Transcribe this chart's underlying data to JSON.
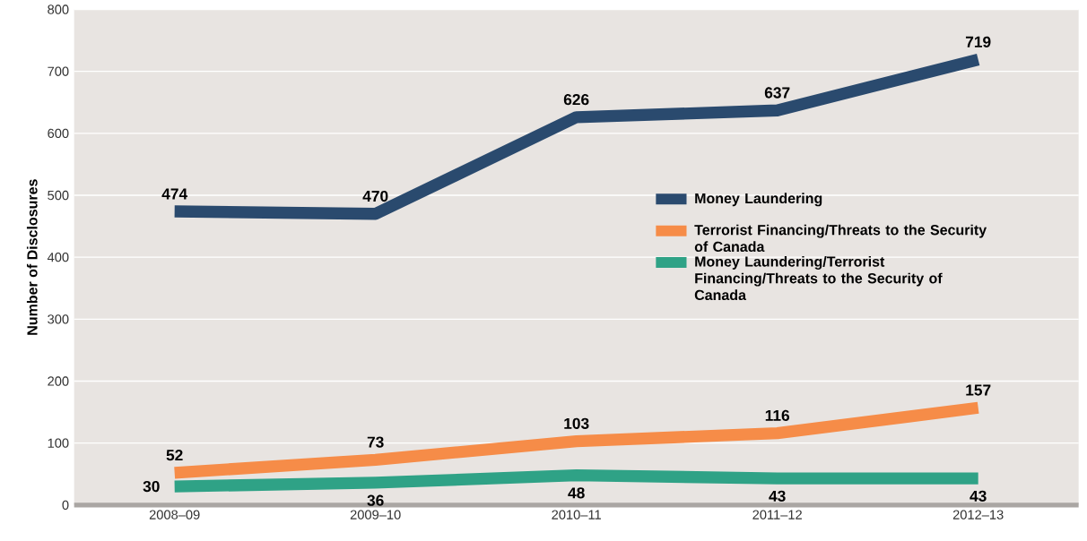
{
  "chart_data": {
    "type": "line",
    "ylabel": "Number of Disclosures",
    "categories": [
      "2008–09",
      "2009–10",
      "2010–11",
      "2011–12",
      "2012–13"
    ],
    "series": [
      {
        "name": "Money Laundering",
        "color": "#2a4a6e",
        "values": [
          474,
          470,
          626,
          637,
          719
        ]
      },
      {
        "name": "Terrorist Financing/Threats to the Security of Canada",
        "color": "#f68c48",
        "values": [
          52,
          73,
          103,
          116,
          157
        ]
      },
      {
        "name": "Money Laundering/Terrorist Financing/Threats to the Security of Canada",
        "color": "#2fa286",
        "values": [
          30,
          36,
          48,
          43,
          43
        ]
      }
    ],
    "ylim": [
      0,
      800
    ],
    "yticks": [
      0,
      100,
      200,
      300,
      400,
      500,
      600,
      700,
      800
    ],
    "grid": "y",
    "legend": "right",
    "data_labels": true,
    "marker": "none",
    "line_style": "solid"
  }
}
